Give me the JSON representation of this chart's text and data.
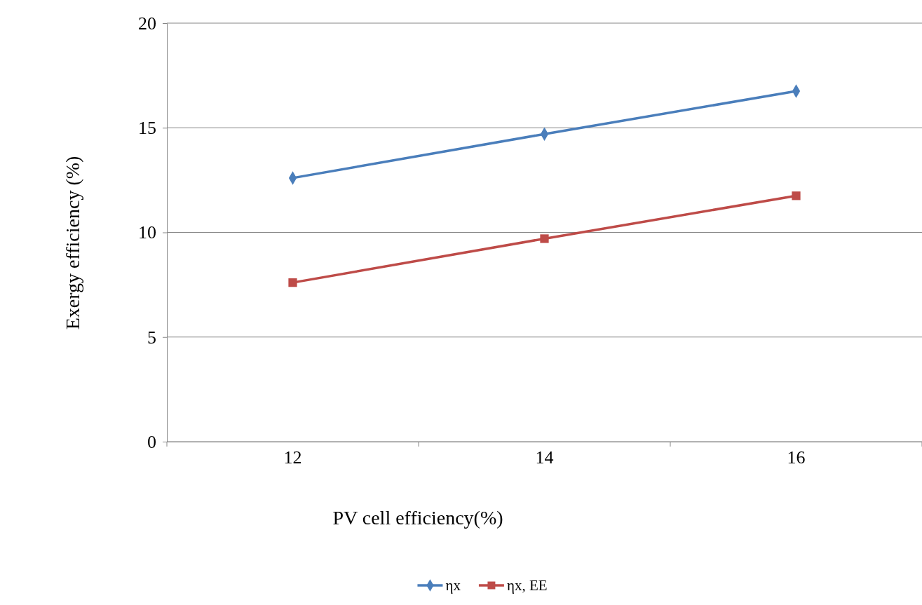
{
  "chart_data": {
    "type": "line",
    "xlabel": "PV cell efficiency(%)",
    "ylabel": "Exergy efficiency (%)",
    "categories": [
      "12",
      "14",
      "16"
    ],
    "series": [
      {
        "name": "ηx",
        "color": "#4a7ebb",
        "marker": "diamond",
        "values": [
          12.6,
          14.7,
          16.75
        ]
      },
      {
        "name": "ηx, EE",
        "color": "#be4b48",
        "marker": "square",
        "values": [
          7.6,
          9.7,
          11.75
        ]
      }
    ],
    "ylim": [
      0,
      20
    ],
    "yticks": [
      0,
      5,
      10,
      15,
      20
    ],
    "grid": "y",
    "legend": "bottom",
    "line_style": "solid"
  }
}
